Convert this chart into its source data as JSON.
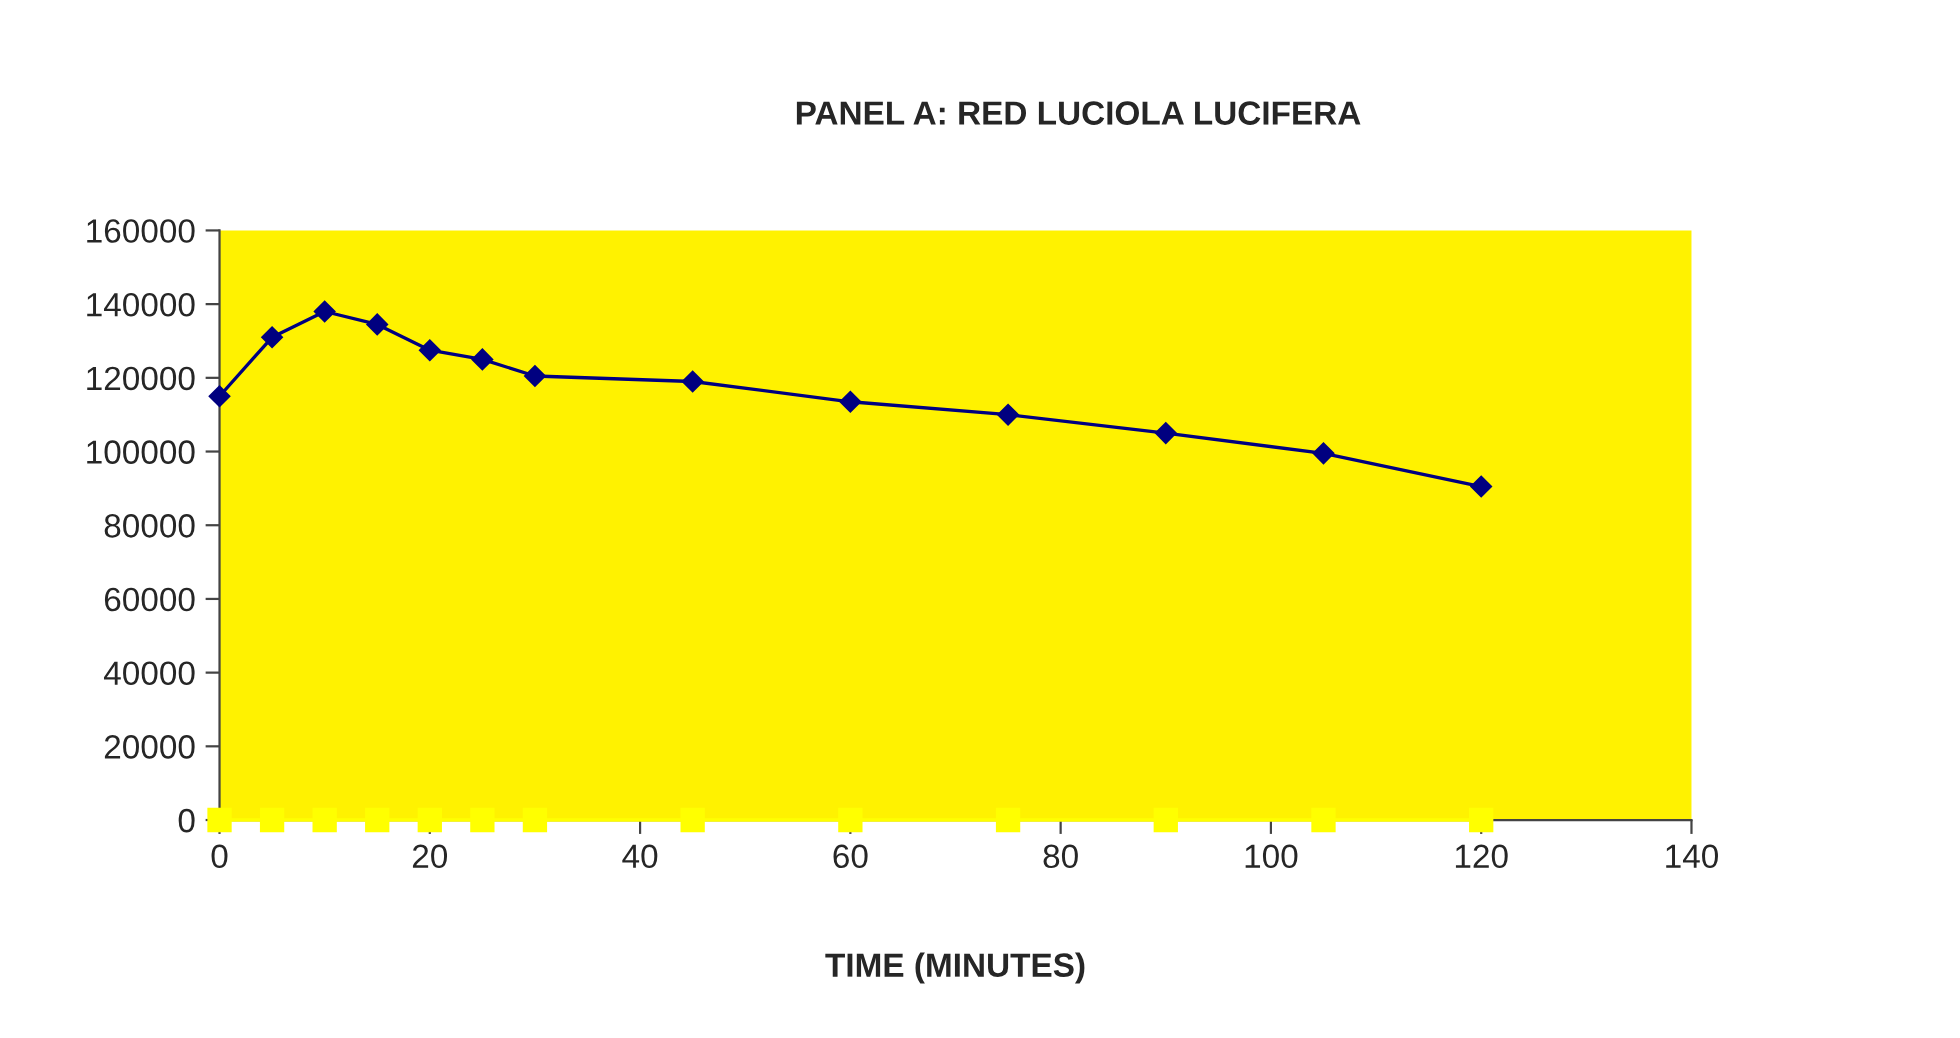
{
  "chart_data": {
    "type": "line",
    "title": "PANEL A: RED LUCIOLA LUCIFERA",
    "xlabel": "TIME (MINUTES)",
    "x": [
      0,
      5,
      10,
      15,
      20,
      25,
      30,
      45,
      60,
      75,
      90,
      105,
      120
    ],
    "series": [
      {
        "color": "#000080",
        "marker": "diamond",
        "values": [
          115000,
          131000,
          138000,
          134500,
          127500,
          125000,
          120500,
          119000,
          113500,
          110000,
          105000,
          99500,
          90500
        ]
      },
      {
        "color": "#ffff00",
        "marker": "square",
        "values": [
          0,
          0,
          0,
          0,
          0,
          0,
          0,
          0,
          0,
          0,
          0,
          0,
          0
        ]
      }
    ],
    "xlim": [
      0,
      140
    ],
    "xticks": [
      0,
      20,
      40,
      60,
      80,
      100,
      120,
      140
    ],
    "ylim": [
      0,
      160000
    ],
    "yticks": [
      0,
      20000,
      40000,
      60000,
      80000,
      100000,
      120000,
      140000,
      160000
    ],
    "grid": false,
    "legend": false,
    "line_style": "solid"
  }
}
